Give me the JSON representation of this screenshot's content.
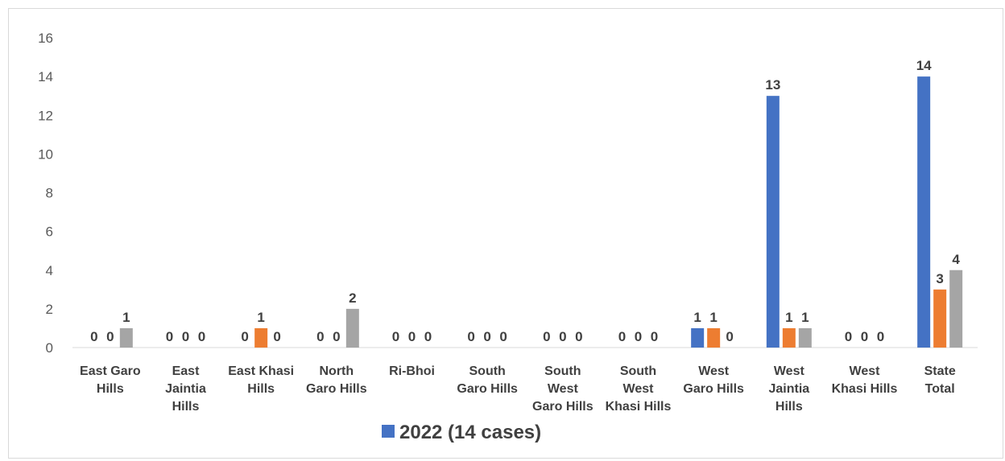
{
  "chart_data": {
    "type": "bar",
    "title": "",
    "xlabel": "",
    "ylabel": "",
    "ylim": [
      0,
      16
    ],
    "yticks": [
      0,
      2,
      4,
      6,
      8,
      10,
      12,
      14,
      16
    ],
    "grid": false,
    "legend_position": "bottom",
    "categories": [
      [
        "East Garo",
        "Hills"
      ],
      [
        "East",
        "Jaintia",
        "Hills"
      ],
      [
        "East Khasi",
        "Hills"
      ],
      [
        "North",
        "Garo Hills"
      ],
      [
        "Ri-Bhoi"
      ],
      [
        "South",
        "Garo Hills"
      ],
      [
        "South",
        "West",
        "Garo Hills"
      ],
      [
        "South",
        "West",
        "Khasi Hills"
      ],
      [
        "West",
        "Garo Hills"
      ],
      [
        "West",
        "Jaintia",
        "Hills"
      ],
      [
        "West",
        "Khasi Hills"
      ],
      [
        "State",
        "Total"
      ]
    ],
    "series": [
      {
        "name": "2022 (14 cases)",
        "color": "#4472C4",
        "values": [
          0,
          0,
          0,
          0,
          0,
          0,
          0,
          0,
          1,
          13,
          0,
          14
        ],
        "in_legend": true
      },
      {
        "color": "#ED7D31",
        "values": [
          0,
          0,
          1,
          0,
          0,
          0,
          0,
          0,
          1,
          1,
          0,
          3
        ],
        "in_legend": false
      },
      {
        "color": "#A5A5A5",
        "values": [
          1,
          0,
          0,
          2,
          0,
          0,
          0,
          0,
          0,
          1,
          0,
          4
        ],
        "in_legend": false
      }
    ]
  }
}
